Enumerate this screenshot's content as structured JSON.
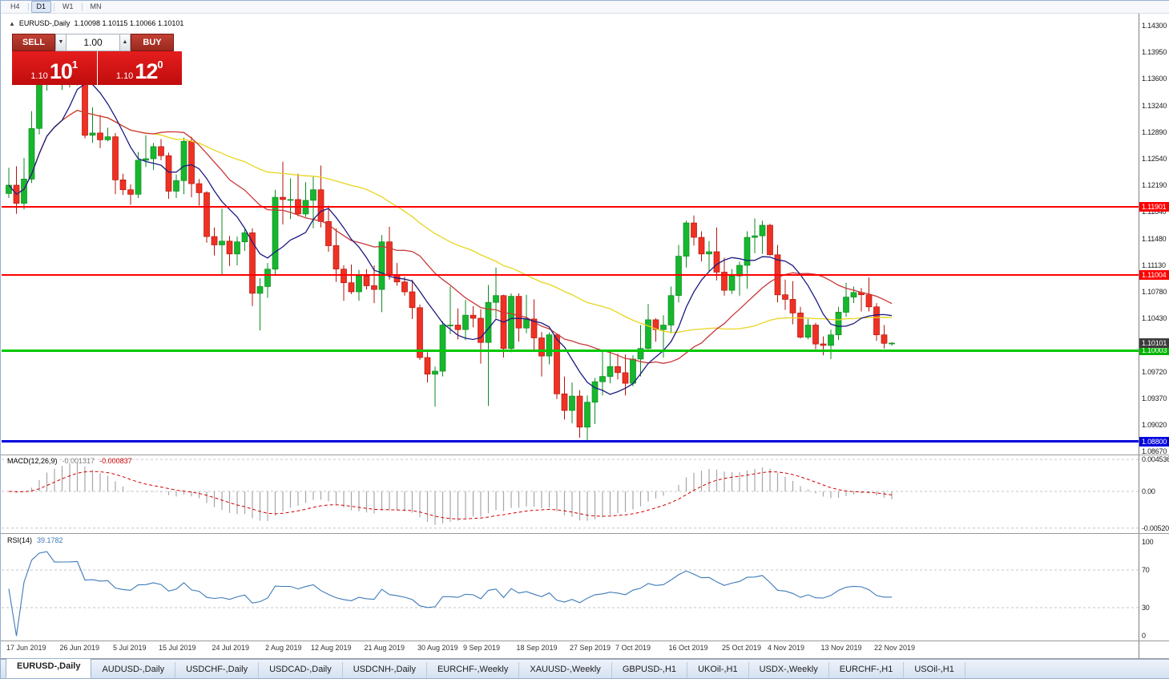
{
  "toolbar": {
    "timeframes": [
      "H4",
      "D1",
      "W1",
      "MN"
    ],
    "active": "D1"
  },
  "chart_header": {
    "collapse_icon": "▲",
    "title": "EURUSD-,Daily",
    "ohlc": "1.10098 1.10115 1.10066 1.10101"
  },
  "trade_panel": {
    "sell_label": "SELL",
    "buy_label": "BUY",
    "volume": "1.00",
    "spin_down_icon": "▼",
    "spin_up_icon": "▲",
    "sell_price": {
      "big": "1.10",
      "mid": "10",
      "sup": "1"
    },
    "buy_price": {
      "big": "1.10",
      "mid": "12",
      "sup": "0"
    }
  },
  "colors": {
    "bull": "#16b72e",
    "bull_dark": "#0c8a20",
    "bear": "#ef3124",
    "bear_dark": "#b3150b",
    "ma_fast": "#1b1b82",
    "ma_mid": "#c93838",
    "ma_slow": "#e8d51e",
    "macd_hist": "#a6a6a6",
    "macd_signal": "#d40000",
    "rsi": "#3d7ab8",
    "line_red": "#ff0000",
    "line_green": "#00c800",
    "line_blue": "#0000dc"
  },
  "chart_data": [
    {
      "type": "candlestick",
      "symbol": "EURUSD-",
      "timeframe": "Daily",
      "ohlc_current": {
        "open": 1.10098,
        "high": 1.10115,
        "low": 1.10066,
        "close": 1.10101
      },
      "y_ticks": [
        "1.14300",
        "1.13950",
        "1.13600",
        "1.13240",
        "1.12890",
        "1.12540",
        "1.12190",
        "1.11840",
        "1.11480",
        "1.11130",
        "1.10780",
        "1.10430",
        "1.10080",
        "1.09720",
        "1.09370",
        "1.09020",
        "1.08670"
      ],
      "x_labels": [
        {
          "label": "17 Jun 2019",
          "index": 0
        },
        {
          "label": "26 Jun 2019",
          "index": 7
        },
        {
          "label": "5 Jul 2019",
          "index": 14
        },
        {
          "label": "15 Jul 2019",
          "index": 20
        },
        {
          "label": "24 Jul 2019",
          "index": 27
        },
        {
          "label": "2 Aug 2019",
          "index": 34
        },
        {
          "label": "12 Aug 2019",
          "index": 40
        },
        {
          "label": "21 Aug 2019",
          "index": 47
        },
        {
          "label": "30 Aug 2019",
          "index": 54
        },
        {
          "label": "9 Sep 2019",
          "index": 60
        },
        {
          "label": "18 Sep 2019",
          "index": 67
        },
        {
          "label": "27 Sep 2019",
          "index": 74
        },
        {
          "label": "7 Oct 2019",
          "index": 80
        },
        {
          "label": "16 Oct 2019",
          "index": 87
        },
        {
          "label": "25 Oct 2019",
          "index": 94
        },
        {
          "label": "4 Nov 2019",
          "index": 100
        },
        {
          "label": "13 Nov 2019",
          "index": 107
        },
        {
          "label": "22 Nov 2019",
          "index": 114
        }
      ],
      "hlines": [
        {
          "value": 1.11901,
          "color": "#ff0000",
          "width": 2
        },
        {
          "value": 1.11004,
          "color": "#ff0000",
          "width": 2
        },
        {
          "value": 1.10003,
          "color": "#00c800",
          "width": 3
        },
        {
          "value": 1.088,
          "color": "#0000dc",
          "width": 3
        }
      ],
      "price_badges": [
        {
          "name": "resistance-badge-1",
          "text": "1.11901",
          "color": "#ff0000"
        },
        {
          "name": "resistance-badge-2",
          "text": "1.11004",
          "color": "#ff0000"
        },
        {
          "name": "support-badge-green",
          "text": "1.10003",
          "color": "#00b400"
        },
        {
          "name": "support-badge-blue",
          "text": "1.08800",
          "color": "#0000dc"
        },
        {
          "name": "current-price-badge",
          "text": "1.10101",
          "color": "#3c3c3c"
        }
      ],
      "moving_averages": [
        {
          "name": "ma-slow-yellow",
          "period": 45,
          "color": "#e8d51e"
        },
        {
          "name": "ma-mid-red",
          "period": 20,
          "color": "#c93838"
        },
        {
          "name": "ma-fast-navy",
          "period": 8,
          "color": "#1b1b82"
        }
      ],
      "candles": [
        [
          1.1208,
          1.1242,
          1.1202,
          1.1219
        ],
        [
          1.1219,
          1.1244,
          1.1181,
          1.1195
        ],
        [
          1.1195,
          1.1255,
          1.1187,
          1.1227
        ],
        [
          1.1227,
          1.1317,
          1.1222,
          1.1294
        ],
        [
          1.1294,
          1.1378,
          1.1286,
          1.1369
        ],
        [
          1.1369,
          1.1403,
          1.1344,
          1.1399
        ],
        [
          1.1399,
          1.1412,
          1.1358,
          1.1367
        ],
        [
          1.1367,
          1.1391,
          1.1345,
          1.1368
        ],
        [
          1.1368,
          1.1392,
          1.1348,
          1.1369
        ],
        [
          1.1369,
          1.1394,
          1.1351,
          1.1373
        ],
        [
          1.1373,
          1.1376,
          1.1281,
          1.1285
        ],
        [
          1.1285,
          1.1322,
          1.1275,
          1.1288
        ],
        [
          1.1288,
          1.1312,
          1.1268,
          1.1279
        ],
        [
          1.1279,
          1.1295,
          1.1277,
          1.1283
        ],
        [
          1.1283,
          1.1288,
          1.1207,
          1.1226
        ],
        [
          1.1226,
          1.1234,
          1.1206,
          1.1213
        ],
        [
          1.1213,
          1.122,
          1.1193,
          1.1207
        ],
        [
          1.1207,
          1.1263,
          1.1202,
          1.1252
        ],
        [
          1.1252,
          1.1285,
          1.1243,
          1.1254
        ],
        [
          1.1254,
          1.1275,
          1.1239,
          1.127
        ],
        [
          1.127,
          1.128,
          1.1252,
          1.1258
        ],
        [
          1.1258,
          1.1262,
          1.1201,
          1.1211
        ],
        [
          1.1211,
          1.1233,
          1.1202,
          1.1225
        ],
        [
          1.1225,
          1.1282,
          1.1207,
          1.1277
        ],
        [
          1.1277,
          1.1283,
          1.1203,
          1.1221
        ],
        [
          1.1221,
          1.1227,
          1.1192,
          1.1209
        ],
        [
          1.1209,
          1.1211,
          1.1143,
          1.1151
        ],
        [
          1.1151,
          1.1163,
          1.1126,
          1.114
        ],
        [
          1.114,
          1.1188,
          1.1101,
          1.1145
        ],
        [
          1.1145,
          1.1152,
          1.1112,
          1.1128
        ],
        [
          1.1128,
          1.1151,
          1.1113,
          1.1144
        ],
        [
          1.1144,
          1.1162,
          1.1132,
          1.1156
        ],
        [
          1.1156,
          1.1162,
          1.1059,
          1.1076
        ],
        [
          1.1076,
          1.1096,
          1.1027,
          1.1085
        ],
        [
          1.1085,
          1.1116,
          1.107,
          1.1108
        ],
        [
          1.1108,
          1.1213,
          1.1101,
          1.1203
        ],
        [
          1.1203,
          1.125,
          1.1167,
          1.12
        ],
        [
          1.12,
          1.1228,
          1.1174,
          1.12
        ],
        [
          1.12,
          1.1234,
          1.1178,
          1.1181
        ],
        [
          1.1181,
          1.1223,
          1.1177,
          1.1199
        ],
        [
          1.1199,
          1.123,
          1.1162,
          1.1213
        ],
        [
          1.1213,
          1.1245,
          1.1163,
          1.1171
        ],
        [
          1.1171,
          1.1192,
          1.1131,
          1.1139
        ],
        [
          1.1139,
          1.1162,
          1.1091,
          1.1108
        ],
        [
          1.1108,
          1.1113,
          1.1066,
          1.109
        ],
        [
          1.109,
          1.1114,
          1.1075,
          1.1078
        ],
        [
          1.1078,
          1.1107,
          1.1066,
          1.1099
        ],
        [
          1.1099,
          1.1108,
          1.1081,
          1.1086
        ],
        [
          1.1086,
          1.1113,
          1.1063,
          1.1081
        ],
        [
          1.1081,
          1.1153,
          1.1051,
          1.1144
        ],
        [
          1.1144,
          1.1164,
          1.1094,
          1.1101
        ],
        [
          1.1101,
          1.1116,
          1.1086,
          1.1091
        ],
        [
          1.1091,
          1.1098,
          1.1073,
          1.1078
        ],
        [
          1.1078,
          1.1094,
          1.1042,
          1.1057
        ],
        [
          1.1057,
          1.1061,
          1.0988,
          1.0991
        ],
        [
          1.0991,
          1.0998,
          1.0958,
          1.0969
        ],
        [
          1.0969,
          1.0979,
          1.0926,
          1.0973
        ],
        [
          1.0973,
          1.1039,
          1.0966,
          1.1034
        ],
        [
          1.1034,
          1.1085,
          1.1022,
          1.1034
        ],
        [
          1.1034,
          1.1056,
          1.1015,
          1.1028
        ],
        [
          1.1028,
          1.1067,
          1.1014,
          1.1047
        ],
        [
          1.1047,
          1.1059,
          1.1031,
          1.1043
        ],
        [
          1.1043,
          1.1055,
          1.0983,
          1.1011
        ],
        [
          1.1011,
          1.1087,
          1.0927,
          1.1064
        ],
        [
          1.1064,
          1.111,
          1.1043,
          1.1073
        ],
        [
          1.1073,
          1.1074,
          1.0991,
          1.1003
        ],
        [
          1.1003,
          1.1076,
          1.0998,
          1.1072
        ],
        [
          1.1072,
          1.1076,
          1.1012,
          1.103
        ],
        [
          1.103,
          1.1074,
          1.1023,
          1.1042
        ],
        [
          1.1042,
          1.1068,
          1.1,
          1.1017
        ],
        [
          1.1017,
          1.1025,
          1.0966,
          1.0993
        ],
        [
          1.0993,
          1.1024,
          1.0982,
          1.1021
        ],
        [
          1.1021,
          1.1023,
          1.0936,
          1.0943
        ],
        [
          1.0943,
          1.0966,
          1.0909,
          1.0921
        ],
        [
          1.0921,
          1.0958,
          1.0904,
          1.094
        ],
        [
          1.094,
          1.0948,
          1.0885,
          1.0899
        ],
        [
          1.0899,
          1.0941,
          1.0879,
          1.0932
        ],
        [
          1.0932,
          1.0964,
          1.0903,
          1.0959
        ],
        [
          1.0959,
          1.0999,
          1.0941,
          1.0966
        ],
        [
          1.0966,
          1.0999,
          1.0957,
          1.0979
        ],
        [
          1.0979,
          1.0996,
          1.0962,
          1.0971
        ],
        [
          1.0971,
          1.0995,
          1.0941,
          1.0957
        ],
        [
          1.0957,
          1.0994,
          1.0953,
          1.0989
        ],
        [
          1.0989,
          1.1034,
          1.0966,
          1.1003
        ],
        [
          1.1003,
          1.1062,
          1.1002,
          1.1041
        ],
        [
          1.1041,
          1.1043,
          1.1012,
          1.1028
        ],
        [
          1.1028,
          1.1047,
          1.0991,
          1.1034
        ],
        [
          1.1034,
          1.1085,
          1.1023,
          1.1073
        ],
        [
          1.1073,
          1.114,
          1.1064,
          1.1125
        ],
        [
          1.1125,
          1.1172,
          1.111,
          1.1169
        ],
        [
          1.1169,
          1.1179,
          1.1139,
          1.115
        ],
        [
          1.115,
          1.1158,
          1.1118,
          1.1128
        ],
        [
          1.1128,
          1.1145,
          1.1105,
          1.1131
        ],
        [
          1.1131,
          1.1163,
          1.1093,
          1.1104
        ],
        [
          1.1104,
          1.1123,
          1.1073,
          1.108
        ],
        [
          1.108,
          1.1108,
          1.1075,
          1.1099
        ],
        [
          1.1099,
          1.1118,
          1.1073,
          1.1113
        ],
        [
          1.1113,
          1.1158,
          1.1082,
          1.115
        ],
        [
          1.115,
          1.1175,
          1.1129,
          1.1152
        ],
        [
          1.1152,
          1.1172,
          1.1128,
          1.1166
        ],
        [
          1.1166,
          1.1168,
          1.1126,
          1.1127
        ],
        [
          1.1127,
          1.114,
          1.1064,
          1.1074
        ],
        [
          1.1074,
          1.1094,
          1.1054,
          1.1068
        ],
        [
          1.1068,
          1.1092,
          1.1035,
          1.105
        ],
        [
          1.105,
          1.1058,
          1.1016,
          1.1018
        ],
        [
          1.1018,
          1.1042,
          1.1015,
          1.1034
        ],
        [
          1.1034,
          1.1037,
          1.1002,
          1.1009
        ],
        [
          1.1009,
          1.1019,
          1.0994,
          1.1007
        ],
        [
          1.1007,
          1.1028,
          1.0989,
          1.1021
        ],
        [
          1.1021,
          1.1058,
          1.1014,
          1.1051
        ],
        [
          1.1051,
          1.109,
          1.1045,
          1.1071
        ],
        [
          1.1071,
          1.1085,
          1.1063,
          1.1077
        ],
        [
          1.1077,
          1.1083,
          1.1052,
          1.1074
        ],
        [
          1.1074,
          1.1097,
          1.1052,
          1.1058
        ],
        [
          1.1058,
          1.1063,
          1.1013,
          1.1021
        ],
        [
          1.1021,
          1.1034,
          1.1003,
          1.10098
        ],
        [
          1.10098,
          1.10115,
          1.10066,
          1.10101
        ]
      ]
    },
    {
      "type": "macd",
      "label": "MACD(12,26,9)",
      "value_main": "-0.001317",
      "value_signal": "-0.000837",
      "params": [
        12,
        26,
        9
      ],
      "y_labels": [
        {
          "v": 0.004536,
          "t": "0.004536"
        },
        {
          "v": 0,
          "t": "0.00"
        },
        {
          "v": -0.005206,
          "t": "-0.005206"
        }
      ]
    },
    {
      "type": "rsi",
      "label": "RSI(14)",
      "value": "39.1782",
      "period": 14,
      "levels": [
        70,
        30
      ],
      "y_labels": [
        {
          "v": 100,
          "t": "100"
        },
        {
          "v": 70,
          "t": "70"
        },
        {
          "v": 30,
          "t": "30"
        },
        {
          "v": 0,
          "t": "0"
        }
      ]
    }
  ],
  "tabs": [
    {
      "label": "EURUSD-,Daily",
      "active": true
    },
    {
      "label": "AUDUSD-,Daily"
    },
    {
      "label": "USDCHF-,Daily"
    },
    {
      "label": "USDCAD-,Daily"
    },
    {
      "label": "USDCNH-,Daily"
    },
    {
      "label": "EURCHF-,Weekly"
    },
    {
      "label": "XAUUSD-,Weekly"
    },
    {
      "label": "GBPUSD-,H1"
    },
    {
      "label": "UKOil-,H1"
    },
    {
      "label": "USDX-,Weekly"
    },
    {
      "label": "EURCHF-,H1"
    },
    {
      "label": "USOil-,H1"
    }
  ]
}
